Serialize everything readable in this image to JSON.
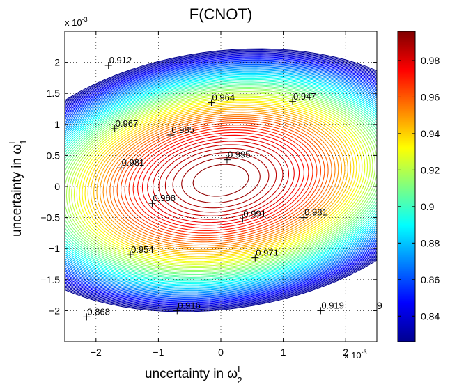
{
  "chart_data": {
    "type": "contour",
    "title": "F(CNOT)",
    "xlabel": "uncertainty in ω",
    "xlabel_sub": "2",
    "xlabel_sup": "L",
    "ylabel": "uncertainty in ω",
    "ylabel_sub": "1",
    "ylabel_sup": "L",
    "x_multiplier": "x 10",
    "x_multiplier_exp": "-3",
    "y_multiplier": "x 10",
    "y_multiplier_exp": "-3",
    "xlim": [
      -2.5,
      2.5
    ],
    "ylim": [
      -2.5,
      2.5
    ],
    "x_ticks": [
      {
        "value": -2,
        "label": "−2"
      },
      {
        "value": -1,
        "label": "−1"
      },
      {
        "value": 0,
        "label": "0"
      },
      {
        "value": 1,
        "label": "1"
      },
      {
        "value": 2,
        "label": "2"
      }
    ],
    "y_ticks": [
      {
        "value": 2,
        "label": "2"
      },
      {
        "value": 1.5,
        "label": "1.5"
      },
      {
        "value": 1,
        "label": "1"
      },
      {
        "value": 0.5,
        "label": "0.5"
      },
      {
        "value": 0,
        "label": "0"
      },
      {
        "value": -0.5,
        "label": "−0.5"
      },
      {
        "value": -1,
        "label": "−1"
      },
      {
        "value": -1.5,
        "label": "−1.5"
      },
      {
        "value": -2,
        "label": "−2"
      }
    ],
    "grid": "dotted",
    "colormap": "jet",
    "colorbar": {
      "location": "right",
      "range": [
        0.826,
        0.996
      ],
      "ticks": [
        {
          "value": 0.98,
          "label": "0.98"
        },
        {
          "value": 0.96,
          "label": "0.96"
        },
        {
          "value": 0.94,
          "label": "0.94"
        },
        {
          "value": 0.92,
          "label": "0.92"
        },
        {
          "value": 0.9,
          "label": "0.9"
        },
        {
          "value": 0.88,
          "label": "0.88"
        },
        {
          "value": 0.86,
          "label": "0.86"
        },
        {
          "value": 0.84,
          "label": "0.84"
        }
      ]
    },
    "surface": {
      "peak": 0.996,
      "center": [
        0,
        0.1
      ],
      "tilt_deg": 8,
      "curvature": {
        "x": 0.0125,
        "y": 0.0395
      },
      "level_min": 0.826,
      "level_step": 0.0025
    },
    "contour_labels": [
      {
        "x": -1.8,
        "y": 1.95,
        "label": "0.912"
      },
      {
        "x": -0.15,
        "y": 1.35,
        "label": "0.964"
      },
      {
        "x": 1.15,
        "y": 1.37,
        "label": "0.947"
      },
      {
        "x": -1.7,
        "y": 0.93,
        "label": "0.967"
      },
      {
        "x": -0.8,
        "y": 0.83,
        "label": "0.985"
      },
      {
        "x": -1.6,
        "y": 0.3,
        "label": "0.981"
      },
      {
        "x": 0.1,
        "y": 0.43,
        "label": "0.995"
      },
      {
        "x": -1.1,
        "y": -0.27,
        "label": "0.988"
      },
      {
        "x": 0.35,
        "y": -0.52,
        "label": "0.991"
      },
      {
        "x": 1.33,
        "y": -0.5,
        "label": "0.981"
      },
      {
        "x": -1.45,
        "y": -1.1,
        "label": "0.954"
      },
      {
        "x": 0.55,
        "y": -1.15,
        "label": "0.971"
      },
      {
        "x": -2.15,
        "y": -2.1,
        "label": "0.868"
      },
      {
        "x": -0.7,
        "y": -2.0,
        "label": "0.916"
      },
      {
        "x": 1.6,
        "y": -2.0,
        "label": "0.919"
      }
    ],
    "edge_label": "9"
  }
}
